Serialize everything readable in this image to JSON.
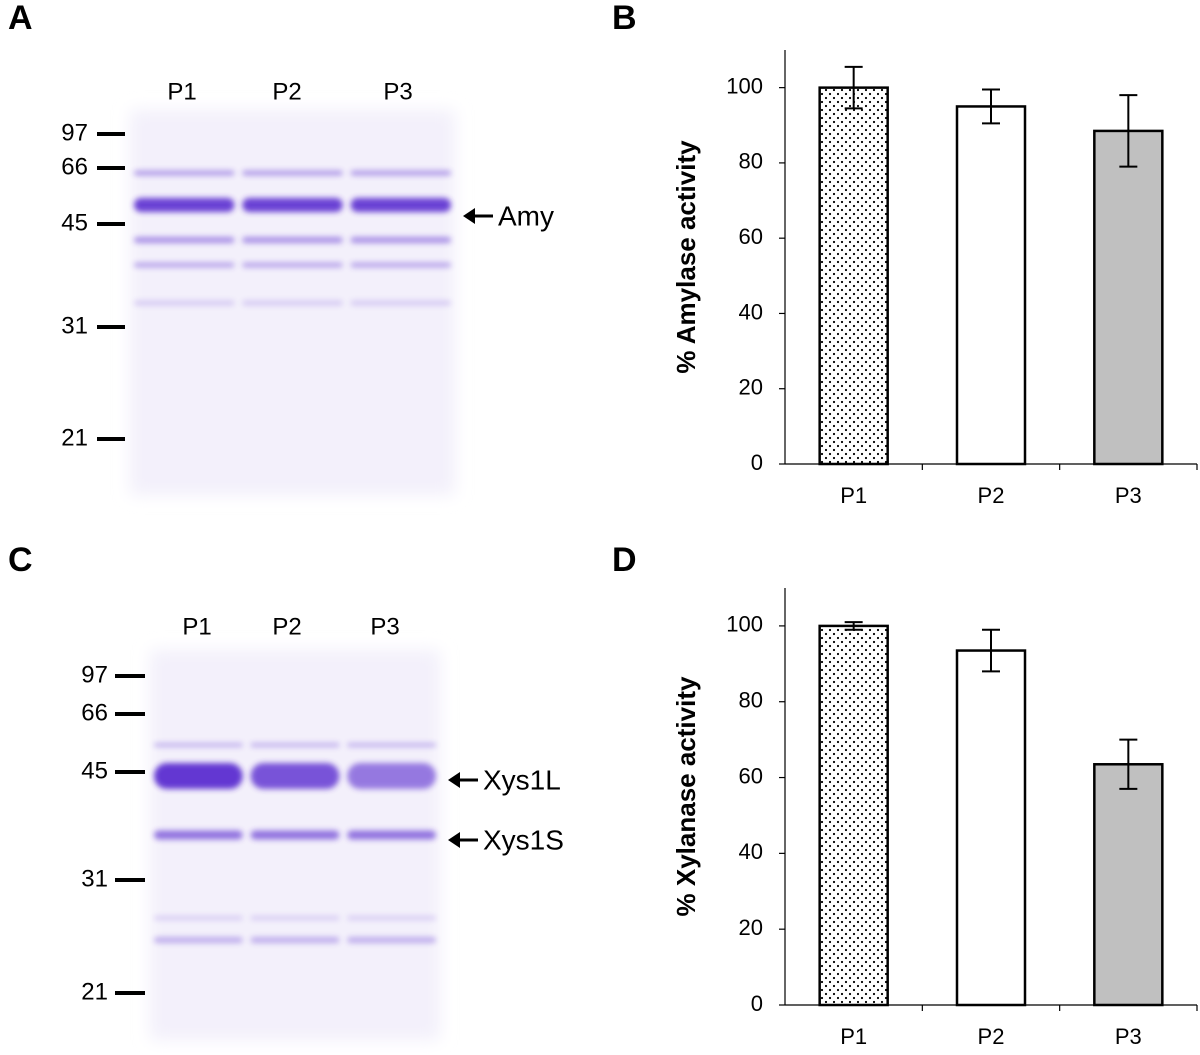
{
  "chart_data": [
    {
      "type": "bar",
      "panel": "B",
      "ylabel": "% Amylase activity",
      "categories": [
        "P1",
        "P2",
        "P3"
      ],
      "values": [
        100,
        95,
        88.5
      ],
      "errors": [
        5.5,
        4.5,
        9.5
      ],
      "bar_fills": [
        "dotted",
        "#ffffff",
        "#c0c0c0"
      ],
      "ylim": [
        0,
        110
      ],
      "yticks": [
        0,
        20,
        40,
        60,
        80,
        100
      ]
    },
    {
      "type": "bar",
      "panel": "D",
      "ylabel": "% Xylanase activity",
      "categories": [
        "P1",
        "P2",
        "P3"
      ],
      "values": [
        100,
        93.5,
        63.5
      ],
      "errors": [
        1,
        5.5,
        6.5
      ],
      "bar_fills": [
        "dotted",
        "#ffffff",
        "#c0c0c0"
      ],
      "ylim": [
        0,
        110
      ],
      "yticks": [
        0,
        20,
        40,
        60,
        80,
        100
      ]
    }
  ],
  "gels": [
    {
      "panel": "A",
      "lanes": [
        "P1",
        "P2",
        "P3"
      ],
      "markers": [
        97,
        66,
        45,
        31,
        21
      ],
      "bands": [
        "Amy"
      ]
    },
    {
      "panel": "C",
      "lanes": [
        "P1",
        "P2",
        "P3"
      ],
      "markers": [
        97,
        66,
        45,
        31,
        21
      ],
      "bands": [
        "Xys1L",
        "Xys1S"
      ]
    }
  ]
}
